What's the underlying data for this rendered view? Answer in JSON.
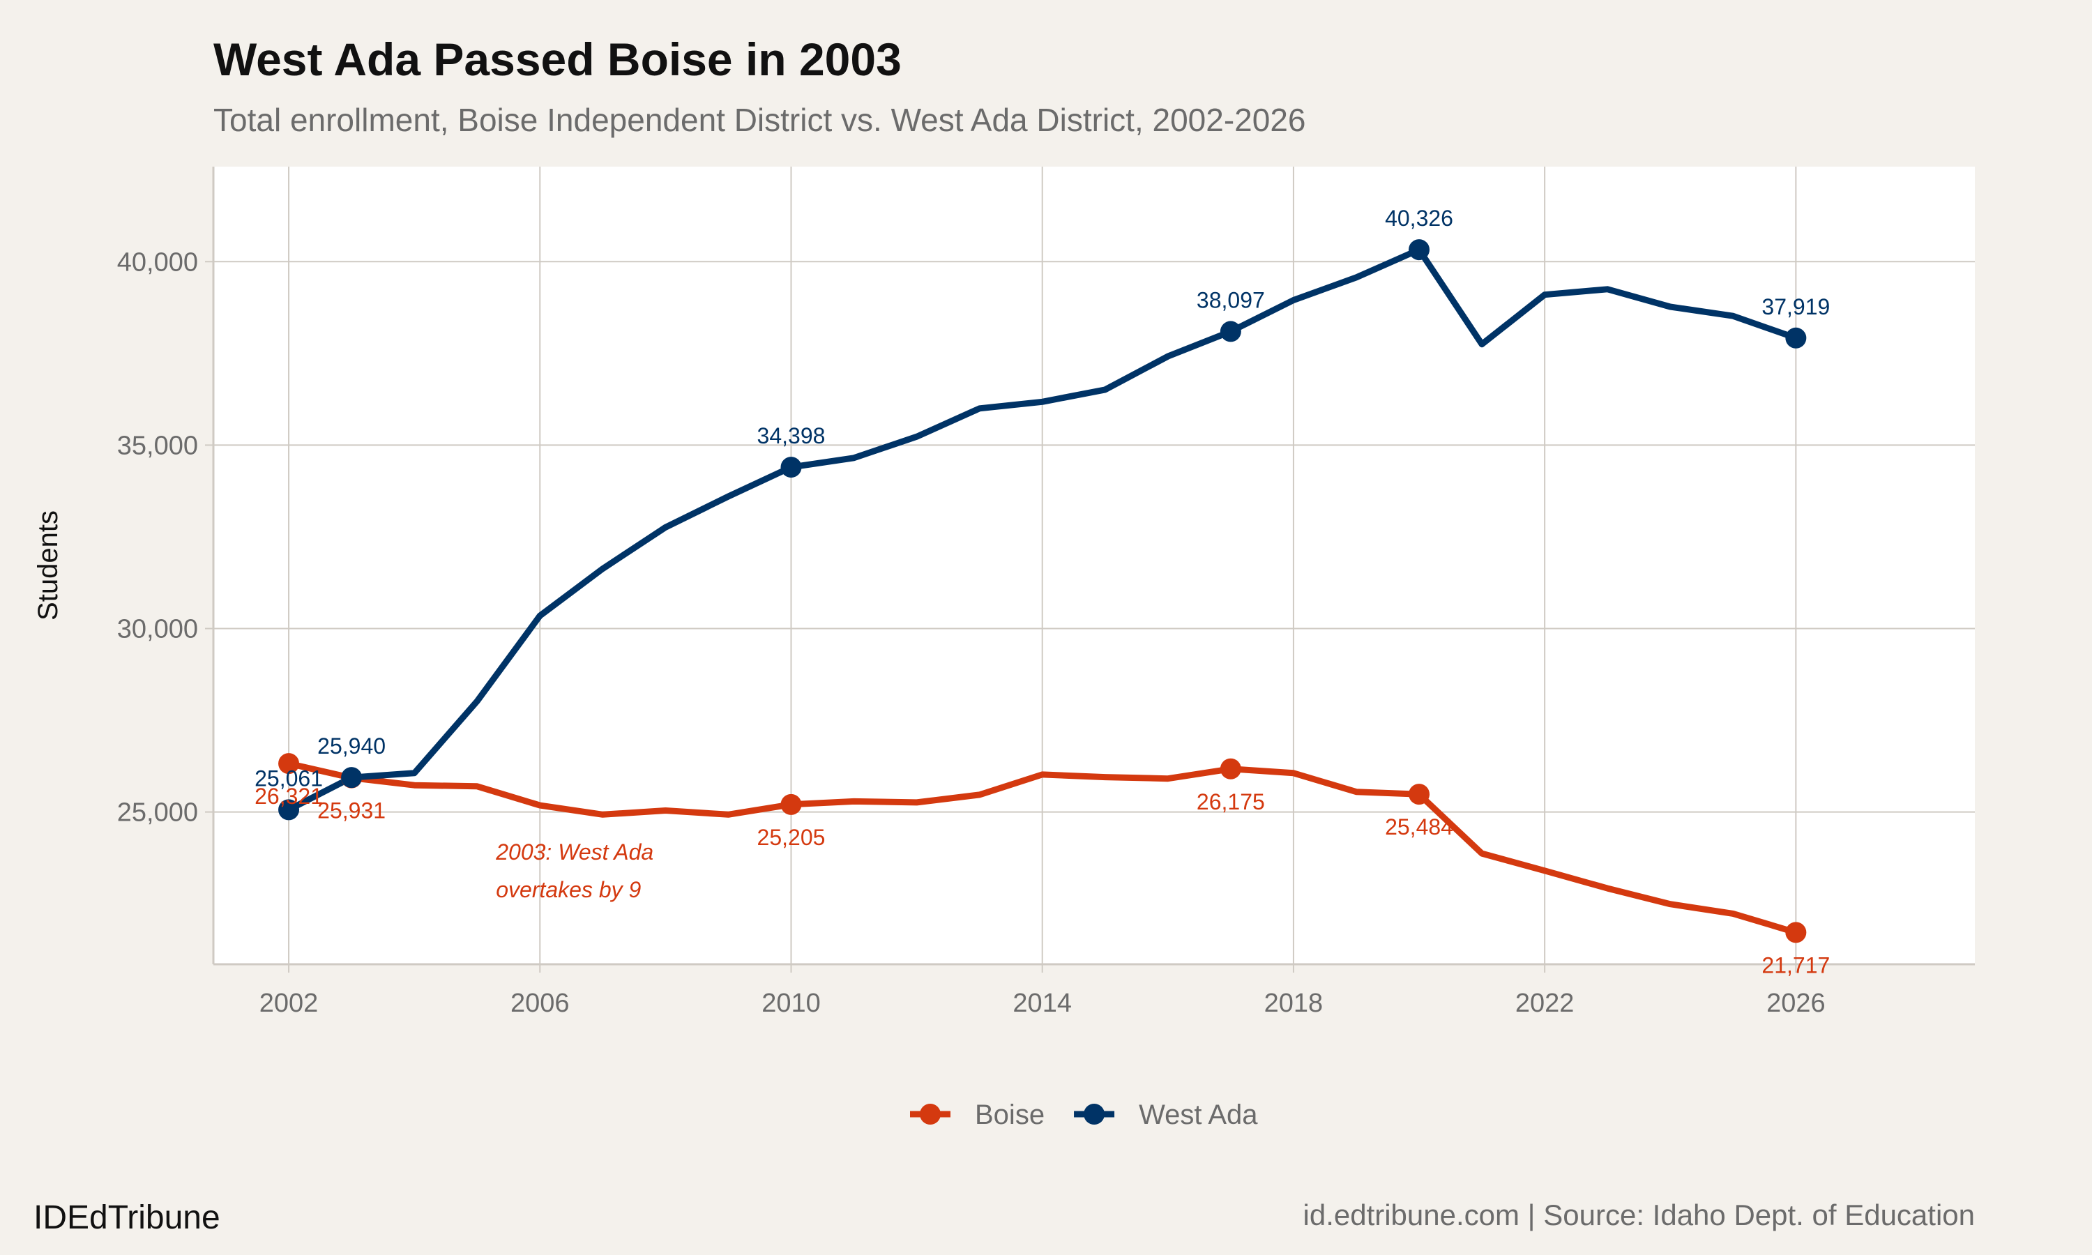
{
  "chart_data": {
    "type": "line",
    "title": "West Ada Passed Boise in 2003",
    "subtitle": "Total enrollment, Boise Independent District vs. West Ada District, 2002-2026",
    "xlabel": "",
    "ylabel": "Students",
    "xlim": [
      2000.8,
      2028.85
    ],
    "ylim": [
      20850,
      42590
    ],
    "x_ticks": [
      2002,
      2006,
      2010,
      2014,
      2018,
      2022,
      2026
    ],
    "x_tick_labels": [
      "2002",
      "2006",
      "2010",
      "2014",
      "2018",
      "2022",
      "2026"
    ],
    "y_ticks": [
      25000,
      30000,
      35000,
      40000
    ],
    "y_tick_labels": [
      "25,000",
      "30,000",
      "35,000",
      "40,000"
    ],
    "grid": true,
    "legend_position": "bottom",
    "x": [
      2002,
      2003,
      2004,
      2005,
      2006,
      2007,
      2008,
      2009,
      2010,
      2011,
      2012,
      2013,
      2014,
      2015,
      2016,
      2017,
      2018,
      2019,
      2020,
      2021,
      2022,
      2023,
      2024,
      2025,
      2026
    ],
    "series": [
      {
        "name": "Boise",
        "color": "#d4390f",
        "values": [
          26321,
          25931,
          25730,
          25700,
          25180,
          24930,
          25040,
          24930,
          25205,
          25290,
          25260,
          25470,
          26020,
          25950,
          25910,
          26175,
          26060,
          25550,
          25484,
          23870,
          23400,
          22920,
          22490,
          22230,
          21717
        ],
        "labeled_points": [
          {
            "x": 2002,
            "y": 26321,
            "label": "26,321"
          },
          {
            "x": 2003,
            "y": 25931,
            "label": "25,931"
          },
          {
            "x": 2010,
            "y": 25205,
            "label": "25,205"
          },
          {
            "x": 2017,
            "y": 26175,
            "label": "26,175"
          },
          {
            "x": 2020,
            "y": 25484,
            "label": "25,484"
          },
          {
            "x": 2026,
            "y": 21717,
            "label": "21,717"
          }
        ]
      },
      {
        "name": "West Ada",
        "color": "#003366",
        "values": [
          25061,
          25940,
          26060,
          28020,
          30350,
          31630,
          32760,
          33600,
          34398,
          34650,
          35230,
          36000,
          36180,
          36510,
          37420,
          38097,
          38950,
          39570,
          40326,
          37750,
          39100,
          39250,
          38770,
          38520,
          37919
        ],
        "labeled_points": [
          {
            "x": 2002,
            "y": 25061,
            "label": "25,061"
          },
          {
            "x": 2003,
            "y": 25940,
            "label": "25,940"
          },
          {
            "x": 2010,
            "y": 34398,
            "label": "34,398"
          },
          {
            "x": 2017,
            "y": 38097,
            "label": "38,097"
          },
          {
            "x": 2020,
            "y": 40326,
            "label": "40,326"
          },
          {
            "x": 2026,
            "y": 37919,
            "label": "37,919"
          }
        ]
      }
    ],
    "annotation": {
      "lines": [
        "2003: West Ada",
        "overtakes by 9"
      ],
      "x": 2005.3,
      "y": 23700,
      "color": "#d4390f"
    }
  },
  "colors": {
    "background": "#f4f1ec",
    "panel": "#ffffff",
    "grid": "#cfcac3"
  },
  "footer": {
    "left": "IDEdTribune",
    "right": "id.edtribune.com | Source: Idaho Dept. of Education"
  }
}
